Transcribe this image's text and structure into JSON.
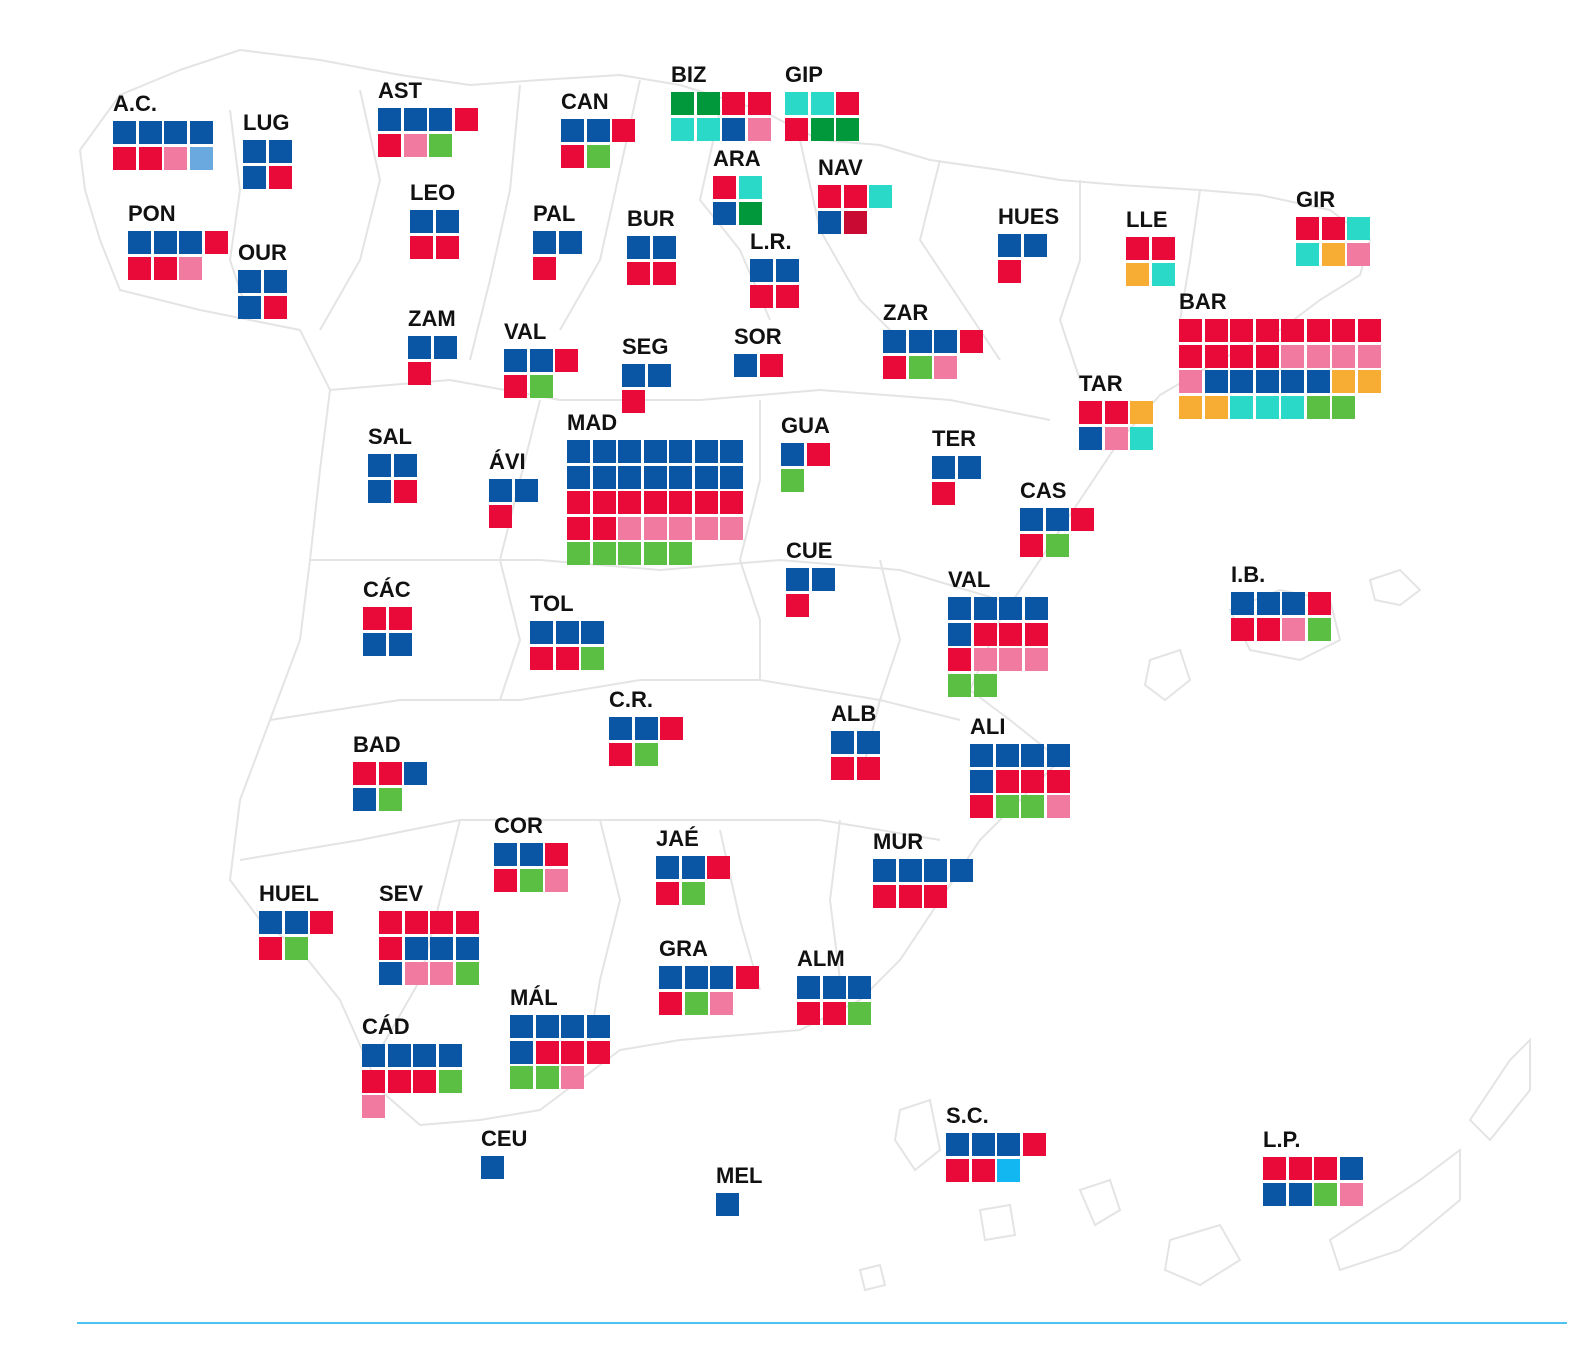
{
  "colors": {
    "PP": "#0a56a5",
    "PSOE": "#ea0a3a",
    "SUMAR": "#f07aa0",
    "VOX": "#5bbf44",
    "BNG": "#6aa8e0",
    "EHB": "#00983a",
    "PNV": "#00a651",
    "ERC": "#f7ad33",
    "JUNTS": "#2ad9c8",
    "UPN": "#c90b33",
    "CC": "#12b6f0"
  },
  "provinces": [
    {
      "name": "A.C.",
      "seats": [
        "PP",
        "PP",
        "PP",
        "PP",
        "PSOE",
        "PSOE",
        "SUMAR",
        "BNG"
      ]
    },
    {
      "name": "LUG",
      "seats": [
        "PP",
        "PP",
        "PP",
        "PSOE"
      ]
    },
    {
      "name": "AST",
      "seats": [
        "PP",
        "PP",
        "PP",
        "PSOE",
        "PSOE",
        "SUMAR",
        "VOX"
      ]
    },
    {
      "name": "CAN",
      "seats": [
        "PP",
        "PP",
        "PSOE",
        "PSOE",
        "VOX"
      ]
    },
    {
      "name": "BIZ",
      "seats": [
        "EHB",
        "EHB",
        "PSOE",
        "PSOE",
        "JUNTS",
        "JUNTS",
        "PP",
        "SUMAR"
      ]
    },
    {
      "name": "GIP",
      "seats": [
        "JUNTS",
        "JUNTS",
        "PSOE",
        "PSOE",
        "EHB",
        "EHB"
      ]
    },
    {
      "name": "ARA",
      "seats": [
        "PSOE",
        "JUNTS",
        "PP",
        "EHB"
      ]
    },
    {
      "name": "NAV",
      "seats": [
        "PSOE",
        "PSOE",
        "JUNTS",
        "PP",
        "UPN"
      ]
    },
    {
      "name": "PON",
      "seats": [
        "PP",
        "PP",
        "PP",
        "PSOE",
        "PSOE",
        "PSOE",
        "SUMAR"
      ]
    },
    {
      "name": "OUR",
      "seats": [
        "PP",
        "PP",
        "PP",
        "PSOE"
      ]
    },
    {
      "name": "LEO",
      "seats": [
        "PP",
        "PP",
        "PSOE",
        "PSOE"
      ]
    },
    {
      "name": "PAL",
      "seats": [
        "PP",
        "PP",
        "PSOE"
      ]
    },
    {
      "name": "BUR",
      "seats": [
        "PP",
        "PP",
        "PSOE",
        "PSOE"
      ]
    },
    {
      "name": "L.R.",
      "seats": [
        "PP",
        "PP",
        "PSOE",
        "PSOE"
      ]
    },
    {
      "name": "HUES",
      "seats": [
        "PP",
        "PP",
        "PSOE"
      ]
    },
    {
      "name": "LLE",
      "seats": [
        "PSOE",
        "PSOE",
        "ERC",
        "JUNTS"
      ]
    },
    {
      "name": "GIR",
      "seats": [
        "PSOE",
        "PSOE",
        "JUNTS",
        "JUNTS",
        "ERC",
        "SUMAR"
      ]
    },
    {
      "name": "ZAM",
      "seats": [
        "PP",
        "PP",
        "PSOE"
      ]
    },
    {
      "name": "VAL",
      "seats": [
        "PP",
        "PP",
        "PSOE",
        "PSOE",
        "VOX"
      ]
    },
    {
      "name": "SEG",
      "seats": [
        "PP",
        "PP",
        "PSOE"
      ]
    },
    {
      "name": "SOR",
      "seats": [
        "PP",
        "PSOE"
      ]
    },
    {
      "name": "ZAR",
      "seats": [
        "PP",
        "PP",
        "PP",
        "PSOE",
        "PSOE",
        "VOX",
        "SUMAR"
      ]
    },
    {
      "name": "BAR",
      "seats": [
        "PSOE",
        "PSOE",
        "PSOE",
        "PSOE",
        "PSOE",
        "PSOE",
        "PSOE",
        "PSOE",
        "PSOE",
        "PSOE",
        "PSOE",
        "PSOE",
        "SUMAR",
        "SUMAR",
        "SUMAR",
        "SUMAR",
        "SUMAR",
        "PP",
        "PP",
        "PP",
        "PP",
        "PP",
        "ERC",
        "ERC",
        "ERC",
        "ERC",
        "JUNTS",
        "JUNTS",
        "JUNTS",
        "VOX",
        "VOX"
      ]
    },
    {
      "name": "TAR",
      "seats": [
        "PSOE",
        "PSOE",
        "ERC",
        "PP",
        "SUMAR",
        "JUNTS"
      ]
    },
    {
      "name": "SAL",
      "seats": [
        "PP",
        "PP",
        "PP",
        "PSOE"
      ]
    },
    {
      "name": "ÁVI",
      "seats": [
        "PP",
        "PP",
        "PSOE"
      ]
    },
    {
      "name": "MAD",
      "seats": [
        "PP",
        "PP",
        "PP",
        "PP",
        "PP",
        "PP",
        "PP",
        "PP",
        "PP",
        "PP",
        "PP",
        "PP",
        "PP",
        "PP",
        "PSOE",
        "PSOE",
        "PSOE",
        "PSOE",
        "PSOE",
        "PSOE",
        "PSOE",
        "PSOE",
        "PSOE",
        "SUMAR",
        "SUMAR",
        "SUMAR",
        "SUMAR",
        "SUMAR",
        "VOX",
        "VOX",
        "VOX",
        "VOX",
        "VOX"
      ]
    },
    {
      "name": "GUA",
      "seats": [
        "PP",
        "PSOE",
        "VOX"
      ]
    },
    {
      "name": "TER",
      "seats": [
        "PP",
        "PP",
        "PSOE"
      ]
    },
    {
      "name": "CAS",
      "seats": [
        "PP",
        "PP",
        "PSOE",
        "PSOE",
        "VOX"
      ]
    },
    {
      "name": "CUE",
      "seats": [
        "PP",
        "PP",
        "PSOE"
      ]
    },
    {
      "name": "CÁC",
      "seats": [
        "PSOE",
        "PSOE",
        "PP",
        "PP"
      ]
    },
    {
      "name": "TOL",
      "seats": [
        "PP",
        "PP",
        "PP",
        "PSOE",
        "PSOE",
        "VOX"
      ]
    },
    {
      "name": "VAL",
      "seats": [
        "PP",
        "PP",
        "PP",
        "PP",
        "PP",
        "PSOE",
        "PSOE",
        "PSOE",
        "PSOE",
        "SUMAR",
        "SUMAR",
        "SUMAR",
        "VOX",
        "VOX"
      ]
    },
    {
      "name": "I.B.",
      "seats": [
        "PP",
        "PP",
        "PP",
        "PSOE",
        "PSOE",
        "PSOE",
        "SUMAR",
        "VOX"
      ]
    },
    {
      "name": "C.R.",
      "seats": [
        "PP",
        "PP",
        "PSOE",
        "PSOE",
        "VOX"
      ]
    },
    {
      "name": "ALB",
      "seats": [
        "PP",
        "PP",
        "PSOE",
        "PSOE"
      ]
    },
    {
      "name": "BAD",
      "seats": [
        "PSOE",
        "PSOE",
        "PP",
        "PP",
        "VOX"
      ]
    },
    {
      "name": "ALI",
      "seats": [
        "PP",
        "PP",
        "PP",
        "PP",
        "PP",
        "PSOE",
        "PSOE",
        "PSOE",
        "PSOE",
        "VOX",
        "VOX",
        "SUMAR"
      ]
    },
    {
      "name": "COR",
      "seats": [
        "PP",
        "PP",
        "PSOE",
        "PSOE",
        "VOX",
        "SUMAR"
      ]
    },
    {
      "name": "JAÉ",
      "seats": [
        "PP",
        "PP",
        "PSOE",
        "PSOE",
        "VOX"
      ]
    },
    {
      "name": "MUR",
      "seats": [
        "PP",
        "PP",
        "PP",
        "PP",
        "PSOE",
        "PSOE",
        "PSOE"
      ]
    },
    {
      "name": "HUEL",
      "seats": [
        "PP",
        "PP",
        "PSOE",
        "PSOE",
        "VOX"
      ]
    },
    {
      "name": "SEV",
      "seats": [
        "PSOE",
        "PSOE",
        "PSOE",
        "PSOE",
        "PSOE",
        "PP",
        "PP",
        "PP",
        "PP",
        "SUMAR",
        "SUMAR",
        "VOX"
      ]
    },
    {
      "name": "GRA",
      "seats": [
        "PP",
        "PP",
        "PP",
        "PSOE",
        "PSOE",
        "VOX",
        "SUMAR"
      ]
    },
    {
      "name": "ALM",
      "seats": [
        "PP",
        "PP",
        "PP",
        "PSOE",
        "PSOE",
        "VOX"
      ]
    },
    {
      "name": "MÁL",
      "seats": [
        "PP",
        "PP",
        "PP",
        "PP",
        "PP",
        "PSOE",
        "PSOE",
        "PSOE",
        "VOX",
        "VOX",
        "SUMAR"
      ]
    },
    {
      "name": "CÁD",
      "seats": [
        "PP",
        "PP",
        "PP",
        "PP",
        "PSOE",
        "PSOE",
        "PSOE",
        "VOX",
        "SUMAR"
      ]
    },
    {
      "name": "CEU",
      "seats": [
        "PP"
      ]
    },
    {
      "name": "MEL",
      "seats": [
        "PP"
      ]
    },
    {
      "name": "S.C.",
      "seats": [
        "PP",
        "PP",
        "PP",
        "PSOE",
        "PSOE",
        "PSOE",
        "CC"
      ]
    },
    {
      "name": "L.P.",
      "seats": [
        "PSOE",
        "PSOE",
        "PSOE",
        "PP",
        "PP",
        "PP",
        "VOX",
        "SUMAR"
      ]
    }
  ]
}
